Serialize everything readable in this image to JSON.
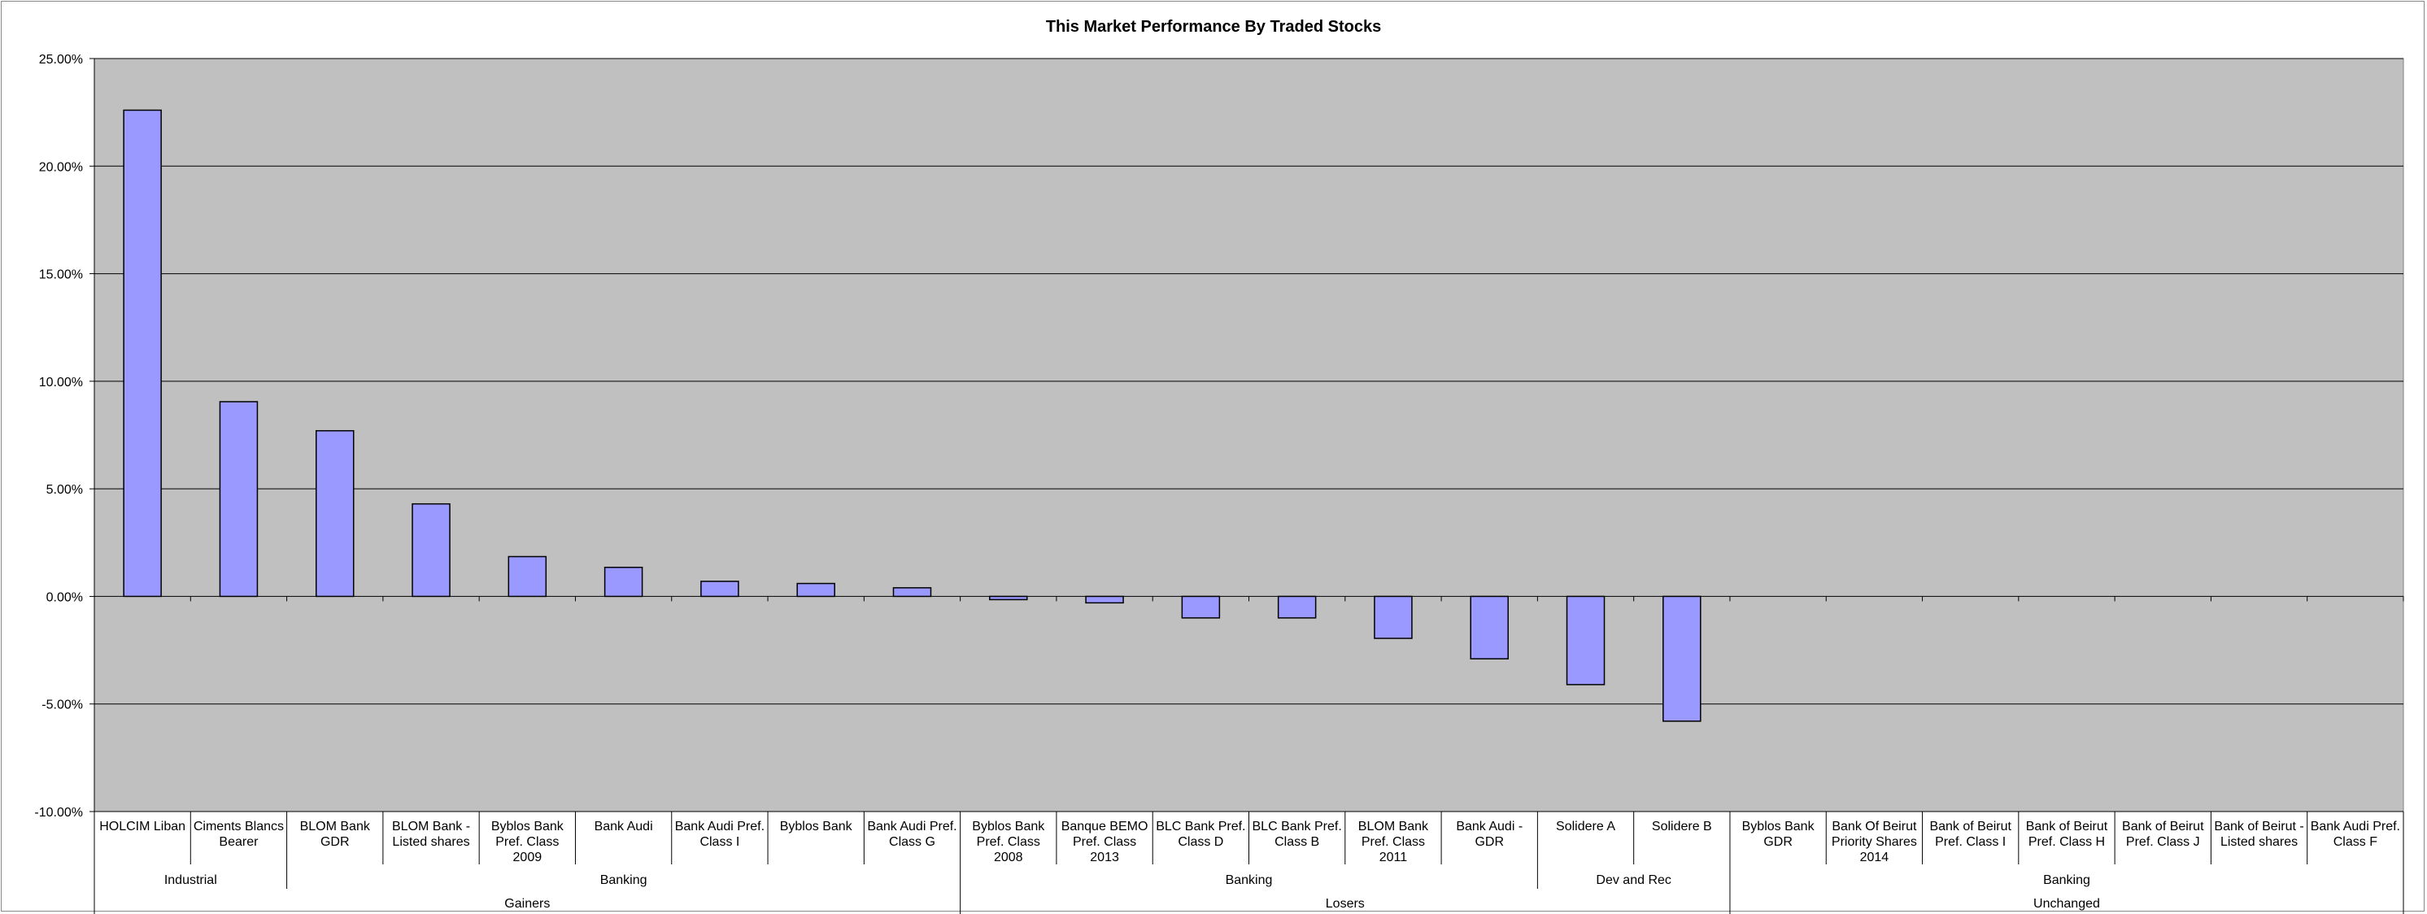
{
  "chart_data": {
    "type": "bar",
    "title": "This Market Performance By Traded Stocks",
    "xlabel": "",
    "ylabel": "",
    "ylim": [
      -0.1,
      0.25
    ],
    "y_ticks": [
      "25.00%",
      "20.00%",
      "15.00%",
      "10.00%",
      "5.00%",
      "0.00%",
      "-5.00%",
      "-10.00%"
    ],
    "y_tick_values": [
      0.25,
      0.2,
      0.15,
      0.1,
      0.05,
      0.0,
      -0.05,
      -0.1
    ],
    "grid": true,
    "plot_background": "#c0c0c0",
    "bar_color": "#9999ff",
    "categories": [
      [
        "HOLCIM Liban"
      ],
      [
        "Ciments Blancs",
        "Bearer"
      ],
      [
        "BLOM Bank",
        "GDR"
      ],
      [
        "BLOM Bank -",
        "Listed shares"
      ],
      [
        "Byblos Bank",
        "Pref. Class",
        "2009"
      ],
      [
        "Bank Audi"
      ],
      [
        "Bank Audi Pref.",
        "Class I"
      ],
      [
        "Byblos Bank"
      ],
      [
        "Bank Audi Pref.",
        "Class G"
      ],
      [
        "Byblos Bank",
        "Pref. Class",
        "2008"
      ],
      [
        "Banque BEMO",
        "Pref. Class",
        "2013"
      ],
      [
        "BLC Bank Pref.",
        "Class D"
      ],
      [
        "BLC Bank Pref.",
        "Class B"
      ],
      [
        "BLOM Bank",
        "Pref. Class",
        "2011"
      ],
      [
        "Bank Audi -",
        "GDR"
      ],
      [
        "Solidere A"
      ],
      [
        "Solidere B"
      ],
      [
        "Byblos Bank",
        "GDR"
      ],
      [
        "Bank Of Beirut",
        "Priority Shares",
        "2014"
      ],
      [
        "Bank of Beirut",
        "Pref. Class I"
      ],
      [
        "Bank of Beirut",
        "Pref. Class H"
      ],
      [
        "Bank of Beirut",
        "Pref. Class J"
      ],
      [
        "Bank of Beirut -",
        "Listed shares"
      ],
      [
        "Bank Audi Pref.",
        "Class F"
      ]
    ],
    "values": [
      0.226,
      0.0905,
      0.077,
      0.043,
      0.0185,
      0.0135,
      0.007,
      0.006,
      0.004,
      -0.0015,
      -0.003,
      -0.01,
      -0.01,
      -0.0195,
      -0.029,
      -0.041,
      -0.058,
      0,
      0,
      0,
      0,
      0,
      0,
      0
    ],
    "sectors": [
      {
        "label": "Industrial",
        "start": 0,
        "end": 2
      },
      {
        "label": "Banking",
        "start": 2,
        "end": 9
      },
      {
        "label": "Banking",
        "start": 9,
        "end": 15
      },
      {
        "label": "Dev and Rec",
        "start": 15,
        "end": 17
      },
      {
        "label": "Banking",
        "start": 17,
        "end": 24
      }
    ],
    "groups": [
      {
        "label": "Gainers",
        "start": 0,
        "end": 9
      },
      {
        "label": "Losers",
        "start": 9,
        "end": 17
      },
      {
        "label": "Unchanged",
        "start": 17,
        "end": 24
      }
    ]
  }
}
